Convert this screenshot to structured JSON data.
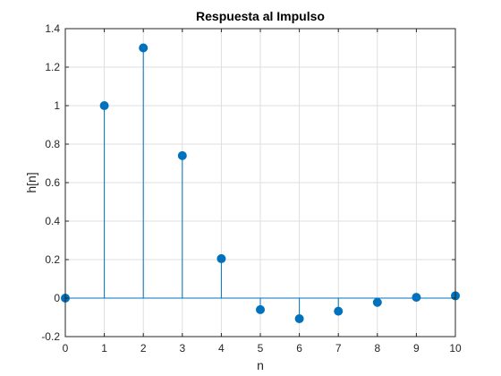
{
  "chart_data": {
    "type": "stem",
    "title": "Respuesta al Impulso",
    "xlabel": "n",
    "ylabel": "h[n]",
    "xlim": [
      0,
      10
    ],
    "ylim": [
      -0.2,
      1.4
    ],
    "xticks": [
      0,
      1,
      2,
      3,
      4,
      5,
      6,
      7,
      8,
      9,
      10
    ],
    "yticks": [
      -0.2,
      0,
      0.2,
      0.4,
      0.6,
      0.8,
      1,
      1.2,
      1.4
    ],
    "xtick_labels": [
      "0",
      "1",
      "2",
      "3",
      "4",
      "5",
      "6",
      "7",
      "8",
      "9",
      "10"
    ],
    "ytick_labels": [
      "-0.2",
      "0",
      "0.2",
      "0.4",
      "0.6",
      "0.8",
      "1",
      "1.2",
      "1.4"
    ],
    "grid": true,
    "color": "#0072BD",
    "series": [
      {
        "x": [
          0,
          1,
          2,
          3,
          4,
          5,
          6,
          7,
          8,
          9,
          10
        ],
        "y": [
          0,
          1.0,
          1.3,
          0.74,
          0.205,
          -0.06,
          -0.107,
          -0.068,
          -0.022,
          0.004,
          0.012
        ]
      }
    ]
  }
}
